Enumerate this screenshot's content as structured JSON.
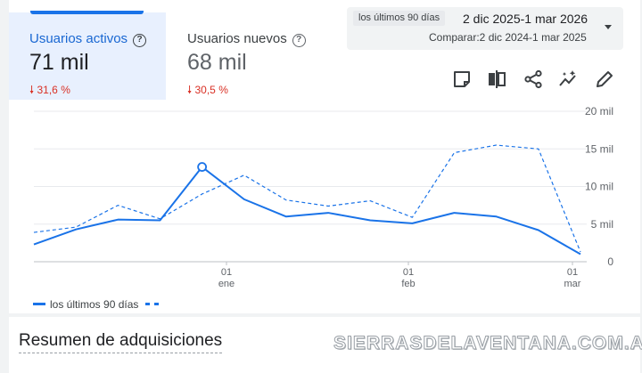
{
  "metrics": [
    {
      "label": "Usuarios activos",
      "value": "71 mil",
      "delta": "31,6 %",
      "active": true
    },
    {
      "label": "Usuarios nuevos",
      "value": "68 mil",
      "delta": "30,5 %",
      "active": false
    }
  ],
  "date_range": {
    "chip": "los últimos 90 días",
    "main": "2 dic 2025-1 mar 2026",
    "compare": "Comparar:2 dic 2024-1 mar 2025"
  },
  "toolbar_icons": [
    "note-icon",
    "compare-icon",
    "share-icon",
    "insights-icon",
    "edit-icon"
  ],
  "legend": {
    "current_label": "los últimos 90 días"
  },
  "section_title": "Resumen de adquisiciones",
  "watermark": "SIERRASDELAVENTANA.COM.AR",
  "colors": {
    "accent": "#1a73e8",
    "negative": "#d93025",
    "active_tab_bg": "#e8f0fe"
  },
  "chart_data": {
    "type": "line",
    "y_ticks": [
      "20 mil",
      "15 mil",
      "10 mil",
      "5 mil",
      "0"
    ],
    "ylim": [
      0,
      20000
    ],
    "x_ticks": [
      {
        "day": "01",
        "month": "ene"
      },
      {
        "day": "01",
        "month": "feb"
      },
      {
        "day": "01",
        "month": "mar"
      }
    ],
    "grid": true,
    "series": [
      {
        "name": "los últimos 90 días",
        "style": "solid",
        "values": [
          2300,
          4300,
          5600,
          5500,
          12600,
          8300,
          6000,
          6500,
          5500,
          5100,
          6500,
          6000,
          4200,
          1000
        ]
      },
      {
        "style": "dashed",
        "values": [
          3900,
          4600,
          7500,
          5700,
          9000,
          11500,
          8200,
          7400,
          8100,
          5900,
          14500,
          15500,
          15000,
          1300
        ]
      }
    ],
    "highlight_index": 4
  }
}
